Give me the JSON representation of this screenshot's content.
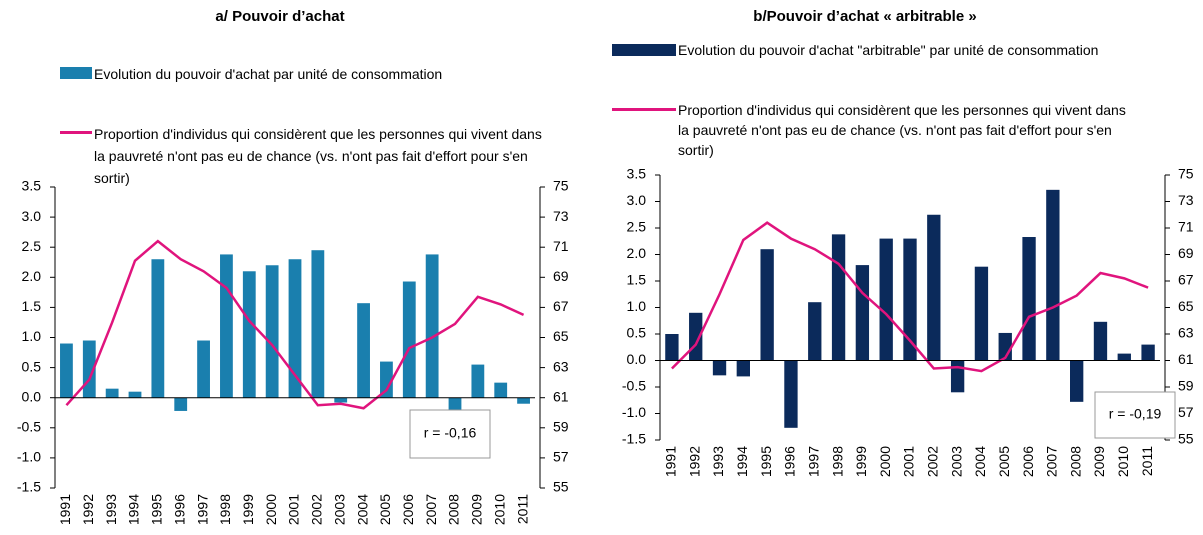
{
  "chart_data": [
    {
      "type": "bar",
      "title": "a/ Pouvoir d’achat",
      "categories": [
        "1991",
        "1992",
        "1993",
        "1994",
        "1995",
        "1996",
        "1997",
        "1998",
        "1999",
        "2000",
        "2001",
        "2002",
        "2003",
        "2004",
        "2005",
        "2006",
        "2007",
        "2008",
        "2009",
        "2010",
        "2011"
      ],
      "series": [
        {
          "name": "Evolution du pouvoir d'achat par unité de consommation",
          "color": "#1a7fae",
          "type": "bar",
          "values": [
            0.9,
            0.95,
            0.15,
            0.1,
            2.3,
            -0.22,
            0.95,
            2.38,
            2.1,
            2.2,
            2.3,
            2.45,
            -0.08,
            1.57,
            0.6,
            1.93,
            2.38,
            -0.25,
            0.55,
            0.25,
            -0.1
          ]
        },
        {
          "name": "Proportion d'individus qui considèrent que les personnes qui vivent dans la pauvreté n'ont pas eu de chance (vs. n'ont pas fait d'effort pour s'en sortir)",
          "color": "#e0147d",
          "type": "line",
          "axis": "y2",
          "values": [
            60.5,
            62.2,
            66,
            70.1,
            71.4,
            70.2,
            69.4,
            68.3,
            66.1,
            64.5,
            62.5,
            60.5,
            60.6,
            60.3,
            61.5,
            64.3,
            65,
            65.9,
            67.7,
            67.2,
            66.5
          ]
        }
      ],
      "ylim": [
        -1.5,
        3.5
      ],
      "yticks": [
        -1.5,
        -0.5,
        {
          "value": -1,
          "label": "-1.0"
        },
        {
          "value": 0,
          "label": "0.0"
        },
        0.5,
        {
          "value": 1,
          "label": "1.0"
        },
        1.5,
        {
          "value": 2,
          "label": "2.0"
        },
        2.5,
        {
          "value": 3,
          "label": "3.0"
        },
        3.5
      ],
      "y2lim": [
        55,
        75
      ],
      "y2ticks": [
        55,
        57,
        59,
        61,
        63,
        65,
        67,
        69,
        71,
        73,
        75
      ],
      "annotation": "r = -0,16"
    },
    {
      "type": "bar",
      "title": "b/Pouvoir d’achat « arbitrable »",
      "categories": [
        "1991",
        "1992",
        "1993",
        "1994",
        "1995",
        "1996",
        "1997",
        "1998",
        "1999",
        "2000",
        "2001",
        "2002",
        "2003",
        "2004",
        "2005",
        "2006",
        "2007",
        "2008",
        "2009",
        "2010",
        "2011"
      ],
      "series": [
        {
          "name": "Evolution du pouvoir d'achat \"arbitrable\" par unité de consommation",
          "color": "#0b2a5b",
          "type": "bar",
          "values": [
            0.5,
            0.9,
            -0.28,
            -0.3,
            2.1,
            -1.27,
            1.1,
            2.38,
            1.8,
            2.3,
            2.3,
            2.75,
            -0.6,
            1.77,
            0.52,
            2.33,
            3.22,
            -0.78,
            0.73,
            0.13,
            0.3
          ]
        },
        {
          "name": "Proportion d'individus qui considèrent que les personnes qui vivent dans la pauvreté n'ont pas eu de chance (vs. n'ont pas fait d'effort pour s'en sortir)",
          "color": "#e0147d",
          "type": "line",
          "axis": "y2",
          "values": [
            60.4,
            62.2,
            66,
            70.1,
            71.4,
            70.2,
            69.4,
            68.3,
            66.1,
            64.5,
            62.5,
            60.4,
            60.5,
            60.2,
            61.2,
            64.3,
            65,
            65.9,
            67.6,
            67.2,
            66.5
          ]
        }
      ],
      "ylim": [
        -1.5,
        3.5
      ],
      "yticks": [
        -1.5,
        {
          "value": -1,
          "label": "-1.0"
        },
        -0.5,
        {
          "value": 0,
          "label": "0.0"
        },
        0.5,
        {
          "value": 1,
          "label": "1.0"
        },
        1.5,
        {
          "value": 2,
          "label": "2.0"
        },
        2.5,
        {
          "value": 3,
          "label": "3.0"
        },
        3.5
      ],
      "y2lim": [
        55,
        75
      ],
      "y2ticks": [
        55,
        57,
        59,
        61,
        63,
        65,
        67,
        69,
        71,
        73,
        75
      ],
      "annotation": "r = -0,19"
    }
  ]
}
